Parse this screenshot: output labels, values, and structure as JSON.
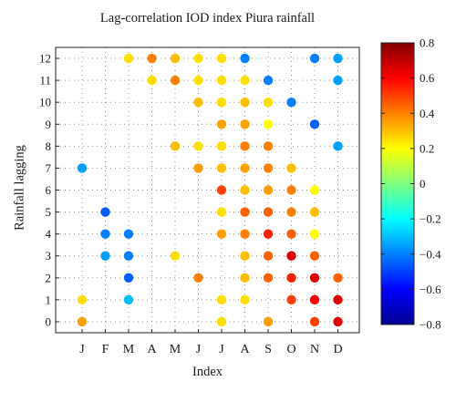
{
  "chart_data": {
    "type": "scatter",
    "title": "Lag-correlation IOD index Piura rainfall",
    "xlabel": "Index",
    "ylabel": "Rainfall lagging",
    "x_categories": [
      "J",
      "F",
      "M",
      "A",
      "M",
      "J",
      "J",
      "A",
      "S",
      "O",
      "N",
      "D"
    ],
    "y_ticks": [
      0,
      1,
      2,
      3,
      4,
      5,
      6,
      7,
      8,
      9,
      10,
      11,
      12
    ],
    "ylim": [
      -0.5,
      12.5
    ],
    "grid": "dotted",
    "colorbar": {
      "colormap": "jet",
      "range": [
        -0.8,
        0.8
      ],
      "ticks": [
        "0.8",
        "0.6",
        "0.4",
        "0.2",
        "0",
        "−0.2",
        "−0.4",
        "−0.6",
        "−0.8"
      ]
    },
    "points": [
      {
        "x": "J",
        "lag": 7,
        "r": -0.35
      },
      {
        "x": "J",
        "lag": 1,
        "r": 0.25
      },
      {
        "x": "J",
        "lag": 0,
        "r": 0.35
      },
      {
        "x": "F",
        "lag": 5,
        "r": -0.45
      },
      {
        "x": "F",
        "lag": 4,
        "r": -0.4
      },
      {
        "x": "F",
        "lag": 3,
        "r": -0.35
      },
      {
        "x": "M",
        "lag": 12,
        "r": 0.25
      },
      {
        "x": "M",
        "lag": 4,
        "r": -0.4
      },
      {
        "x": "M",
        "lag": 3,
        "r": -0.4
      },
      {
        "x": "M",
        "lag": 2,
        "r": -0.45
      },
      {
        "x": "M",
        "lag": 1,
        "r": -0.3
      },
      {
        "x": "A",
        "lag": 12,
        "r": 0.4
      },
      {
        "x": "A",
        "lag": 11,
        "r": 0.25
      },
      {
        "x": "M",
        "lag": 12,
        "r": 0.3,
        "col": 4
      },
      {
        "x": "M",
        "lag": 11,
        "r": 0.4,
        "col": 4
      },
      {
        "x": "M",
        "lag": 8,
        "r": 0.3,
        "col": 4
      },
      {
        "x": "M",
        "lag": 3,
        "r": 0.25,
        "col": 4
      },
      {
        "x": "J",
        "lag": 12,
        "r": 0.25,
        "col": 5
      },
      {
        "x": "J",
        "lag": 11,
        "r": 0.25,
        "col": 5
      },
      {
        "x": "J",
        "lag": 10,
        "r": 0.3,
        "col": 5
      },
      {
        "x": "J",
        "lag": 8,
        "r": 0.25,
        "col": 5
      },
      {
        "x": "J",
        "lag": 7,
        "r": 0.35,
        "col": 5
      },
      {
        "x": "J",
        "lag": 2,
        "r": 0.4,
        "col": 5
      },
      {
        "x": "J",
        "lag": 12,
        "r": 0.25,
        "col": 6
      },
      {
        "x": "J",
        "lag": 11,
        "r": 0.25,
        "col": 6
      },
      {
        "x": "J",
        "lag": 10,
        "r": 0.25,
        "col": 6
      },
      {
        "x": "J",
        "lag": 9,
        "r": 0.35,
        "col": 6
      },
      {
        "x": "J",
        "lag": 8,
        "r": 0.25,
        "col": 6
      },
      {
        "x": "J",
        "lag": 7,
        "r": 0.3,
        "col": 6
      },
      {
        "x": "J",
        "lag": 6,
        "r": 0.5,
        "col": 6
      },
      {
        "x": "J",
        "lag": 5,
        "r": 0.25,
        "col": 6
      },
      {
        "x": "J",
        "lag": 4,
        "r": 0.35,
        "col": 6
      },
      {
        "x": "J",
        "lag": 1,
        "r": 0.25,
        "col": 6
      },
      {
        "x": "J",
        "lag": 0,
        "r": 0.25,
        "col": 6
      },
      {
        "x": "A",
        "lag": 12,
        "r": -0.4,
        "col": 7
      },
      {
        "x": "A",
        "lag": 11,
        "r": 0.25,
        "col": 7
      },
      {
        "x": "A",
        "lag": 10,
        "r": 0.3,
        "col": 7
      },
      {
        "x": "A",
        "lag": 9,
        "r": 0.35,
        "col": 7
      },
      {
        "x": "A",
        "lag": 8,
        "r": 0.4,
        "col": 7
      },
      {
        "x": "A",
        "lag": 7,
        "r": 0.35,
        "col": 7
      },
      {
        "x": "A",
        "lag": 6,
        "r": 0.3,
        "col": 7
      },
      {
        "x": "A",
        "lag": 5,
        "r": 0.45,
        "col": 7
      },
      {
        "x": "A",
        "lag": 4,
        "r": 0.4,
        "col": 7
      },
      {
        "x": "A",
        "lag": 3,
        "r": 0.3,
        "col": 7
      },
      {
        "x": "A",
        "lag": 2,
        "r": 0.3,
        "col": 7
      },
      {
        "x": "A",
        "lag": 1,
        "r": 0.25,
        "col": 7
      },
      {
        "x": "S",
        "lag": 11,
        "r": -0.4,
        "col": 8
      },
      {
        "x": "S",
        "lag": 10,
        "r": 0.25,
        "col": 8
      },
      {
        "x": "S",
        "lag": 9,
        "r": 0.2,
        "col": 8
      },
      {
        "x": "S",
        "lag": 8,
        "r": 0.4,
        "col": 8
      },
      {
        "x": "S",
        "lag": 7,
        "r": 0.4,
        "col": 8
      },
      {
        "x": "S",
        "lag": 6,
        "r": 0.35,
        "col": 8
      },
      {
        "x": "S",
        "lag": 5,
        "r": 0.45,
        "col": 8
      },
      {
        "x": "S",
        "lag": 4,
        "r": 0.55,
        "col": 8
      },
      {
        "x": "S",
        "lag": 3,
        "r": 0.45,
        "col": 8
      },
      {
        "x": "S",
        "lag": 2,
        "r": 0.45,
        "col": 8
      },
      {
        "x": "S",
        "lag": 0,
        "r": 0.35,
        "col": 8
      },
      {
        "x": "O",
        "lag": 10,
        "r": -0.4,
        "col": 9
      },
      {
        "x": "O",
        "lag": 7,
        "r": 0.3,
        "col": 9
      },
      {
        "x": "O",
        "lag": 6,
        "r": 0.4,
        "col": 9
      },
      {
        "x": "O",
        "lag": 5,
        "r": 0.4,
        "col": 9
      },
      {
        "x": "O",
        "lag": 4,
        "r": 0.45,
        "col": 9
      },
      {
        "x": "O",
        "lag": 3,
        "r": 0.65,
        "col": 9
      },
      {
        "x": "O",
        "lag": 2,
        "r": 0.55,
        "col": 9
      },
      {
        "x": "O",
        "lag": 1,
        "r": 0.5,
        "col": 9
      },
      {
        "x": "N",
        "lag": 12,
        "r": -0.4,
        "col": 10
      },
      {
        "x": "N",
        "lag": 9,
        "r": -0.45,
        "col": 10
      },
      {
        "x": "N",
        "lag": 6,
        "r": 0.2,
        "col": 10
      },
      {
        "x": "N",
        "lag": 5,
        "r": 0.3,
        "col": 10
      },
      {
        "x": "N",
        "lag": 4,
        "r": 0.2,
        "col": 10
      },
      {
        "x": "N",
        "lag": 3,
        "r": 0.45,
        "col": 10
      },
      {
        "x": "N",
        "lag": 2,
        "r": 0.65,
        "col": 10
      },
      {
        "x": "N",
        "lag": 1,
        "r": 0.6,
        "col": 10
      },
      {
        "x": "N",
        "lag": 0,
        "r": 0.5,
        "col": 10
      },
      {
        "x": "D",
        "lag": 12,
        "r": -0.35,
        "col": 11
      },
      {
        "x": "D",
        "lag": 11,
        "r": -0.35,
        "col": 11
      },
      {
        "x": "D",
        "lag": 8,
        "r": -0.35,
        "col": 11
      },
      {
        "x": "D",
        "lag": 2,
        "r": 0.45,
        "col": 11
      },
      {
        "x": "D",
        "lag": 1,
        "r": 0.65,
        "col": 11
      },
      {
        "x": "D",
        "lag": 0,
        "r": 0.65,
        "col": 11
      }
    ]
  }
}
